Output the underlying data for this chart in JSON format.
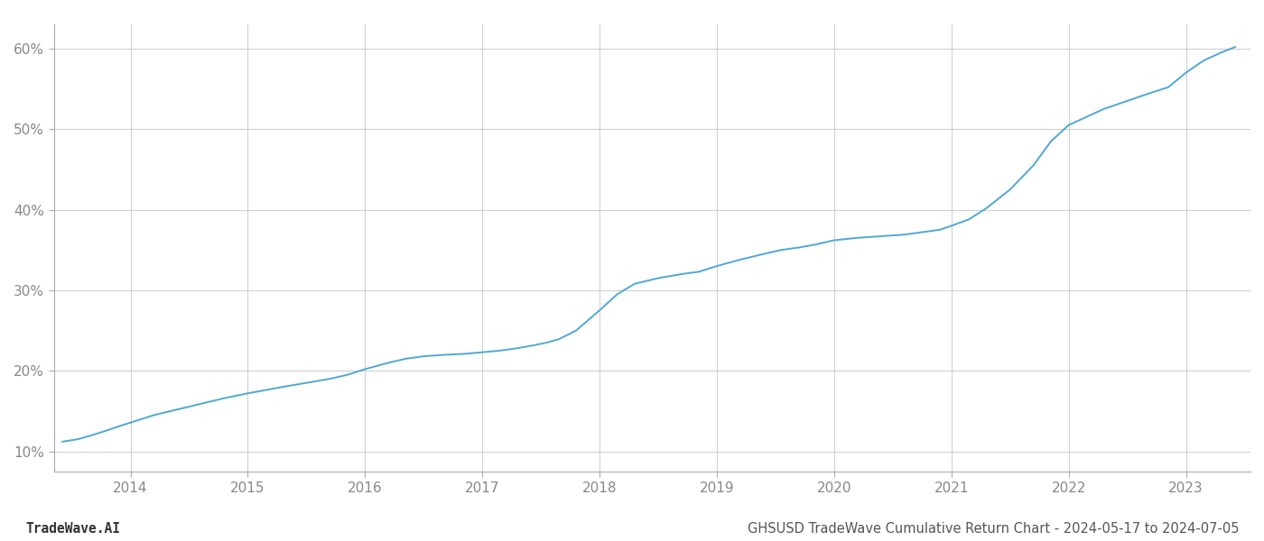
{
  "footer_left": "TradeWave.AI",
  "footer_right": "GHSUSD TradeWave Cumulative Return Chart - 2024-05-17 to 2024-07-05",
  "line_color": "#4fa8d4",
  "background_color": "#ffffff",
  "grid_color": "#d0d0d0",
  "x_years": [
    2014,
    2015,
    2016,
    2017,
    2018,
    2019,
    2020,
    2021,
    2022,
    2023
  ],
  "x_data": [
    2013.42,
    2013.55,
    2013.67,
    2013.8,
    2013.92,
    2014.05,
    2014.2,
    2014.4,
    2014.6,
    2014.8,
    2015.0,
    2015.15,
    2015.3,
    2015.5,
    2015.7,
    2015.85,
    2016.0,
    2016.2,
    2016.35,
    2016.5,
    2016.7,
    2016.85,
    2017.0,
    2017.15,
    2017.3,
    2017.45,
    2017.55,
    2017.65,
    2017.8,
    2018.0,
    2018.15,
    2018.3,
    2018.5,
    2018.7,
    2018.85,
    2019.0,
    2019.2,
    2019.4,
    2019.55,
    2019.7,
    2019.85,
    2020.0,
    2020.2,
    2020.4,
    2020.6,
    2020.75,
    2020.9,
    2021.0,
    2021.15,
    2021.3,
    2021.5,
    2021.7,
    2021.85,
    2022.0,
    2022.15,
    2022.3,
    2022.5,
    2022.7,
    2022.85,
    2023.0,
    2023.15,
    2023.3,
    2023.42
  ],
  "y_data": [
    11.2,
    11.5,
    12.0,
    12.6,
    13.2,
    13.8,
    14.5,
    15.2,
    15.9,
    16.6,
    17.2,
    17.6,
    18.0,
    18.5,
    19.0,
    19.5,
    20.2,
    21.0,
    21.5,
    21.8,
    22.0,
    22.1,
    22.3,
    22.5,
    22.8,
    23.2,
    23.5,
    23.9,
    25.0,
    27.5,
    29.5,
    30.8,
    31.5,
    32.0,
    32.3,
    33.0,
    33.8,
    34.5,
    35.0,
    35.3,
    35.7,
    36.2,
    36.5,
    36.7,
    36.9,
    37.2,
    37.5,
    38.0,
    38.8,
    40.2,
    42.5,
    45.5,
    48.5,
    50.5,
    51.5,
    52.5,
    53.5,
    54.5,
    55.2,
    57.0,
    58.5,
    59.5,
    60.2
  ],
  "yticks": [
    10,
    20,
    30,
    40,
    50,
    60
  ],
  "ylim": [
    7.5,
    63
  ],
  "xlim": [
    2013.35,
    2023.55
  ],
  "line_width": 1.4,
  "footer_fontsize": 10.5,
  "tick_fontsize": 11,
  "tick_color": "#888888",
  "footer_color": "#888888",
  "spine_color": "#aaaaaa"
}
